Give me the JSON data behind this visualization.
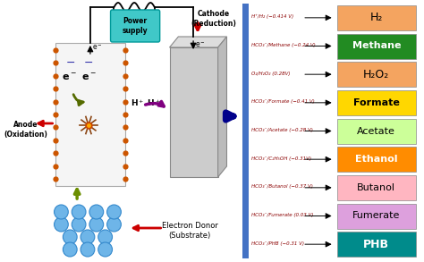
{
  "products": [
    {
      "label": "H₂",
      "reaction": "H⁺/H₂ (−0.414 V)",
      "color": "#F4A460",
      "text_color": "black",
      "bold": false,
      "fontsize": 9
    },
    {
      "label": "Methane",
      "reaction": "HCO₃⁻/Methane (−0.24 V)",
      "color": "#228B22",
      "text_color": "white",
      "bold": true,
      "fontsize": 8
    },
    {
      "label": "H₂O₂",
      "reaction": "O₂/H₂O₂ (0.28V)",
      "color": "#F4A460",
      "text_color": "black",
      "bold": false,
      "fontsize": 9
    },
    {
      "label": "Formate",
      "reaction": "HCO₃⁻/Formate (−0.41 V)",
      "color": "#FFD700",
      "text_color": "black",
      "bold": true,
      "fontsize": 8
    },
    {
      "label": "Acetate",
      "reaction": "HCO₃⁻/Acetate (−0.28 V)",
      "color": "#CCFF99",
      "text_color": "black",
      "bold": false,
      "fontsize": 8
    },
    {
      "label": "Ethanol",
      "reaction": "HCO₃⁻/C₂H₅OH (−0.31V)",
      "color": "#FF8C00",
      "text_color": "white",
      "bold": true,
      "fontsize": 8
    },
    {
      "label": "Butanol",
      "reaction": "HCO₃⁻/Butanol (−0.37 V)",
      "color": "#FFB6C1",
      "text_color": "black",
      "bold": false,
      "fontsize": 8
    },
    {
      "label": "Fumerate",
      "reaction": "HCO₃⁻/Fumerate (0.03 V)",
      "color": "#DDA0DD",
      "text_color": "black",
      "bold": false,
      "fontsize": 8
    },
    {
      "label": "PHB",
      "reaction": "HCO₃⁻/PHB (−0.31 V)",
      "color": "#008B8B",
      "text_color": "white",
      "bold": true,
      "fontsize": 9
    }
  ],
  "blue_bar_color": "#4472C4",
  "bg_color": "#FFFFFF",
  "power_supply_color": "#40C8C8",
  "anode_fill": "#F0F0F0",
  "cathode_fill": "#CCCCCC",
  "cathode_top_fill": "#DDDDDD",
  "cathode_right_fill": "#BBBBBB"
}
